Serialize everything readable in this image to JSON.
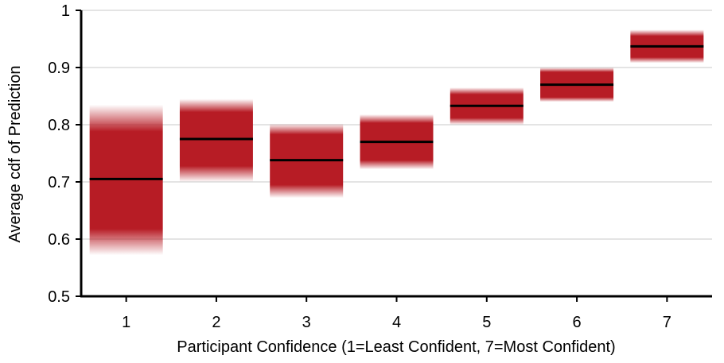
{
  "chart_data": {
    "type": "bar",
    "title": "",
    "xlabel": "Participant Confidence (1=Least Confident, 7=Most Confident)",
    "ylabel": "Average cdf of Prediction",
    "ylim": [
      0.5,
      1.0
    ],
    "yticks": [
      "0.5",
      "0.6",
      "0.7",
      "0.8",
      "0.9",
      "1"
    ],
    "categories": [
      "1",
      "2",
      "3",
      "4",
      "5",
      "6",
      "7"
    ],
    "series": [
      {
        "values": [
          0.705,
          0.775,
          0.738,
          0.77,
          0.833,
          0.87,
          0.937
        ],
        "interval_inner_low": [
          0.618,
          0.728,
          0.695,
          0.738,
          0.812,
          0.848,
          0.918
        ],
        "interval_inner_high": [
          0.788,
          0.822,
          0.783,
          0.803,
          0.853,
          0.892,
          0.955
        ],
        "interval_outer_low": [
          0.572,
          0.7,
          0.672,
          0.722,
          0.8,
          0.84,
          0.908
        ],
        "interval_outer_high": [
          0.835,
          0.845,
          0.802,
          0.818,
          0.865,
          0.9,
          0.966
        ]
      }
    ],
    "grid": "horizontal",
    "legend": "none",
    "colors": {
      "band": "#b71c25",
      "median_line": "#000000",
      "grid": "#c8c8c8",
      "axis": "#000000"
    }
  }
}
